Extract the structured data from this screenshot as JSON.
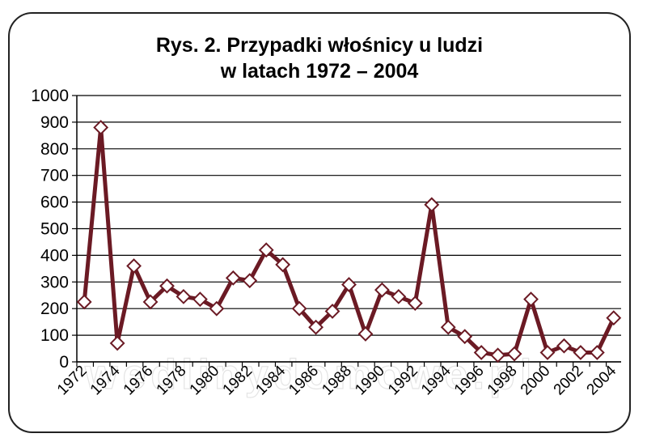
{
  "chart_data": {
    "type": "line",
    "title_line1": "Rys. 2. Przypadki włośnicy u ludzi",
    "title_line2": "w latach 1972 – 2004",
    "xlabel": "",
    "ylabel": "",
    "x": [
      1972,
      1973,
      1974,
      1975,
      1976,
      1977,
      1978,
      1979,
      1980,
      1981,
      1982,
      1983,
      1984,
      1985,
      1986,
      1987,
      1988,
      1989,
      1990,
      1991,
      1992,
      1993,
      1994,
      1995,
      1996,
      1997,
      1998,
      1999,
      2000,
      2001,
      2002,
      2003,
      2004
    ],
    "x_tick_labels": [
      "1972",
      "1974",
      "1976",
      "1978",
      "1980",
      "1982",
      "1984",
      "1986",
      "1988",
      "1990",
      "1992",
      "1994",
      "1996",
      "1998",
      "2000",
      "2002",
      "2004"
    ],
    "y_tick_labels": [
      "0",
      "100",
      "200",
      "300",
      "400",
      "500",
      "600",
      "700",
      "800",
      "900",
      "1000"
    ],
    "ylim": [
      0,
      1000
    ],
    "grid": true,
    "legend": "none",
    "series": [
      {
        "values": [
          225,
          880,
          70,
          360,
          225,
          285,
          245,
          235,
          200,
          315,
          305,
          420,
          365,
          200,
          130,
          190,
          290,
          105,
          270,
          245,
          220,
          590,
          130,
          95,
          35,
          25,
          30,
          235,
          35,
          60,
          35,
          35,
          165
        ],
        "color": "#6b1a24",
        "marker": "diamond"
      }
    ]
  },
  "watermark": "wedlinydomowe.pl"
}
